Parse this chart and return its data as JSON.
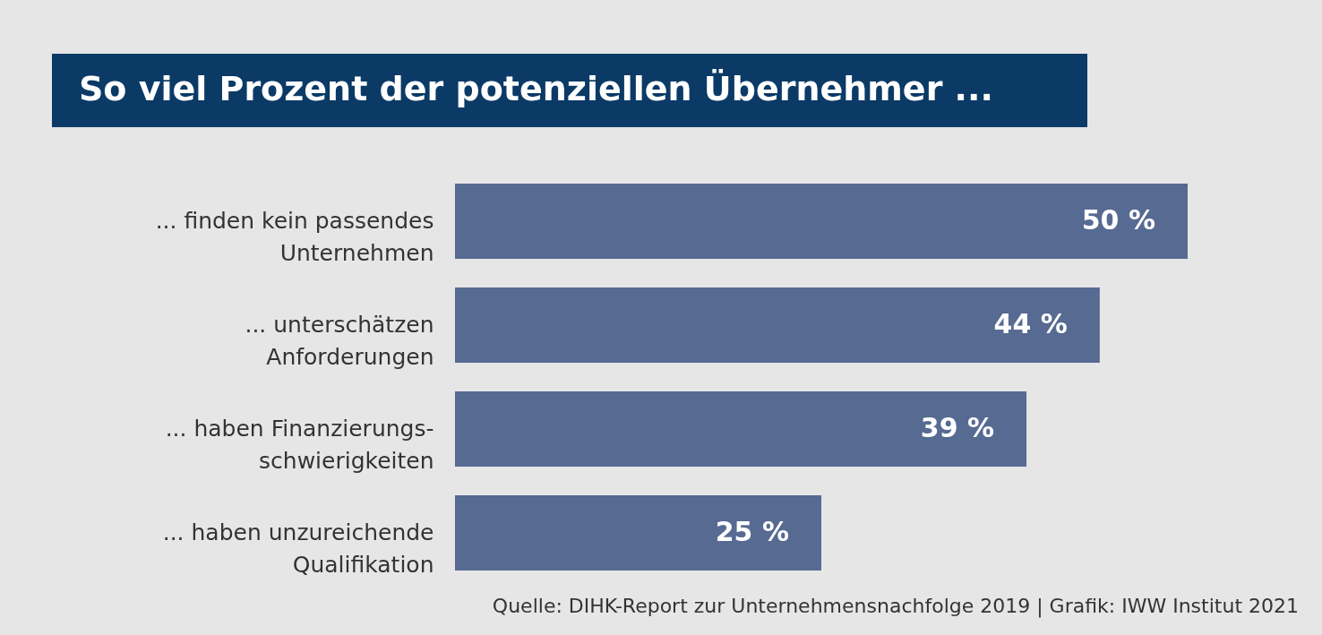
{
  "chart_data": {
    "type": "bar",
    "orientation": "horizontal",
    "title": "So viel Prozent der potenziellen Übernehmer ...",
    "categories": [
      "... finden kein passendes\nUnternehmen",
      "... unterschätzen\nAnforderungen",
      "... haben Finanzierungs-\nschwierigkeiten",
      "... haben unzureichende\nQualifikation"
    ],
    "values": [
      50,
      44,
      39,
      25
    ],
    "value_labels": [
      "50 %",
      "44 %",
      "39 %",
      "25 %"
    ],
    "color": "#566a92",
    "annotations": [
      "Quelle: DIHK-Report zur Unternehmensnachfolge 2019 | Grafik: IWW Institut 2021"
    ],
    "grid": false
  }
}
